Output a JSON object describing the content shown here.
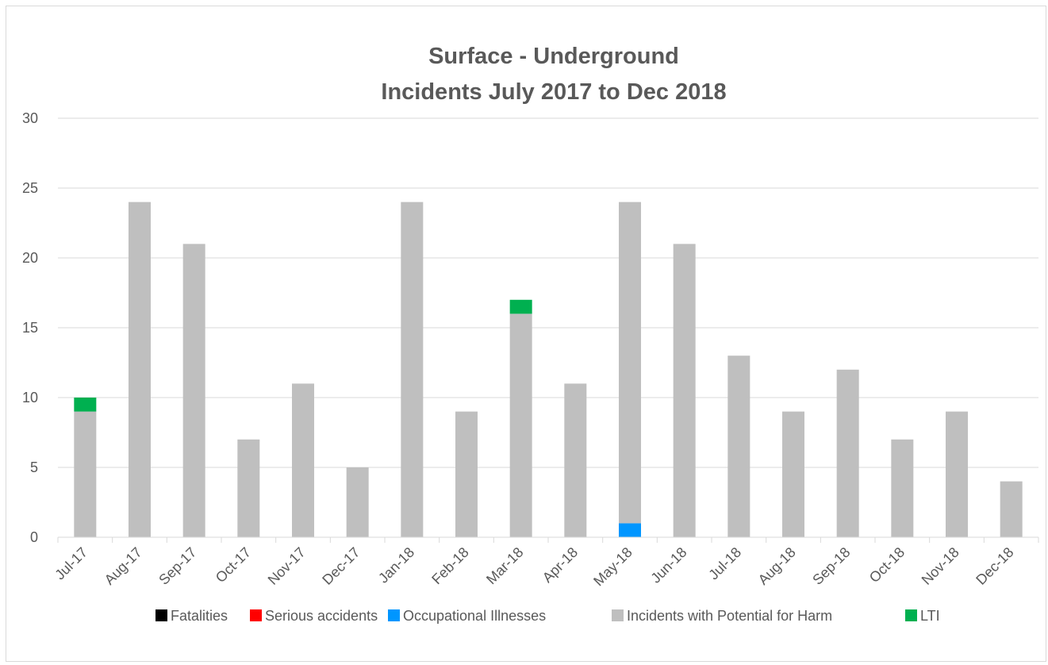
{
  "chart_data": {
    "type": "bar",
    "stacked": true,
    "title": [
      "Surface - Underground",
      "Incidents July 2017 to Dec 2018"
    ],
    "xlabel": "",
    "ylabel": "",
    "ylim": [
      0,
      30
    ],
    "yticks": [
      0,
      5,
      10,
      15,
      20,
      25,
      30
    ],
    "grid": true,
    "legend_position": "bottom",
    "categories": [
      "Jul-17",
      "Aug-17",
      "Sep-17",
      "Oct-17",
      "Nov-17",
      "Dec-17",
      "Jan-18",
      "Feb-18",
      "Mar-18",
      "Apr-18",
      "May-18",
      "Jun-18",
      "Jul-18",
      "Aug-18",
      "Sep-18",
      "Oct-18",
      "Nov-18",
      "Dec-18"
    ],
    "series": [
      {
        "name": "Fatalities",
        "color": "#000000",
        "values": [
          0,
          0,
          0,
          0,
          0,
          0,
          0,
          0,
          0,
          0,
          0,
          0,
          0,
          0,
          0,
          0,
          0,
          0
        ]
      },
      {
        "name": "Serious accidents",
        "color": "#ff0000",
        "values": [
          0,
          0,
          0,
          0,
          0,
          0,
          0,
          0,
          0,
          0,
          0,
          0,
          0,
          0,
          0,
          0,
          0,
          0
        ]
      },
      {
        "name": "Occupational Illnesses",
        "color": "#0096ff",
        "values": [
          0,
          0,
          0,
          0,
          0,
          0,
          0,
          0,
          0,
          0,
          1,
          0,
          0,
          0,
          0,
          0,
          0,
          0
        ]
      },
      {
        "name": "Incidents with Potential for Harm",
        "color": "#bfbfbf",
        "values": [
          9,
          24,
          21,
          7,
          11,
          5,
          24,
          9,
          16,
          11,
          23,
          21,
          13,
          9,
          12,
          7,
          9,
          4
        ]
      },
      {
        "name": "LTI",
        "color": "#00b050",
        "values": [
          1,
          0,
          0,
          0,
          0,
          0,
          0,
          0,
          1,
          0,
          0,
          0,
          0,
          0,
          0,
          0,
          0,
          0
        ]
      }
    ]
  }
}
